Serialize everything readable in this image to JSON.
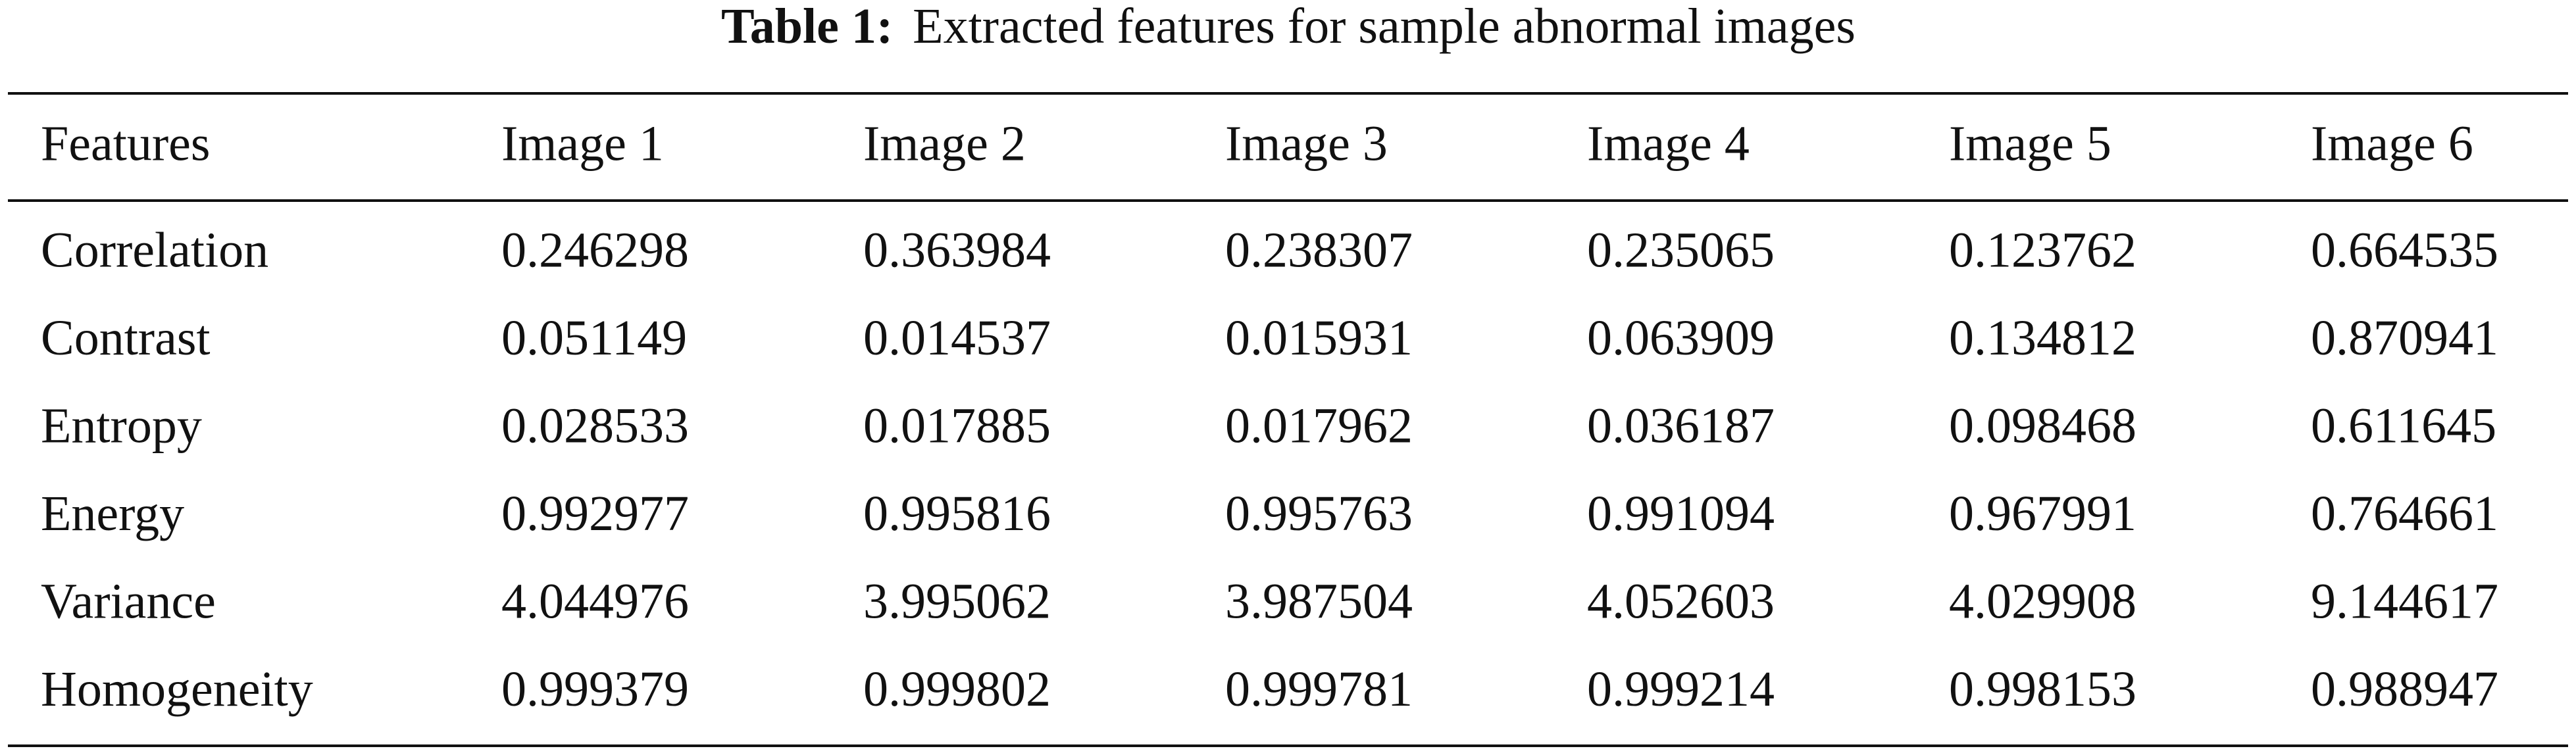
{
  "table": {
    "caption": {
      "label": "Table 1:",
      "text": "Extracted features for sample abnormal images"
    },
    "header": [
      "Features",
      "Image 1",
      "Image 2",
      "Image 3",
      "Image 4",
      "Image 5",
      "Image 6"
    ],
    "rows": [
      [
        "Correlation",
        "0.246298",
        "0.363984",
        "0.238307",
        "0.235065",
        "0.123762",
        "0.664535"
      ],
      [
        "Contrast",
        "0.051149",
        "0.014537",
        "0.015931",
        "0.063909",
        "0.134812",
        "0.870941"
      ],
      [
        "Entropy",
        "0.028533",
        "0.017885",
        "0.017962",
        "0.036187",
        "0.098468",
        "0.611645"
      ],
      [
        "Energy",
        "0.992977",
        "0.995816",
        "0.995763",
        "0.991094",
        "0.967991",
        "0.764661"
      ],
      [
        "Variance",
        "4.044976",
        "3.995062",
        "3.987504",
        "4.052603",
        "4.029908",
        "9.144617"
      ],
      [
        "Homogeneity",
        "0.999379",
        "0.999802",
        "0.999781",
        "0.999214",
        "0.998153",
        "0.988947"
      ]
    ]
  }
}
